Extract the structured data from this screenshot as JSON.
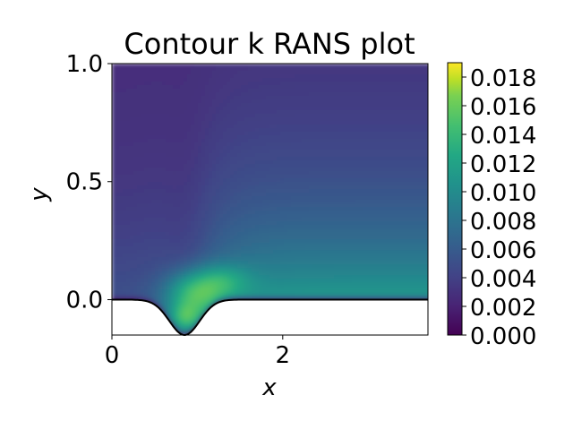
{
  "chart_data": {
    "type": "heatmap",
    "title": "Contour k RANS plot",
    "xlabel": "x",
    "ylabel": "y",
    "xlim": [
      0,
      3.7
    ],
    "ylim": [
      -0.15,
      1.0
    ],
    "x_ticks": [
      {
        "value": 0,
        "label": "0"
      },
      {
        "value": 2,
        "label": "2"
      }
    ],
    "y_ticks": [
      {
        "value": 0.0,
        "label": "0.0"
      },
      {
        "value": 0.5,
        "label": "0.5"
      },
      {
        "value": 1.0,
        "label": "1.0"
      }
    ],
    "colorbar": {
      "colormap": "viridis",
      "range": [
        0,
        0.019
      ],
      "ticks": [
        {
          "value": 0.0,
          "label": "0.000"
        },
        {
          "value": 0.002,
          "label": "0.002"
        },
        {
          "value": 0.004,
          "label": "0.004"
        },
        {
          "value": 0.006,
          "label": "0.006"
        },
        {
          "value": 0.008,
          "label": "0.008"
        },
        {
          "value": 0.01,
          "label": "0.010"
        },
        {
          "value": 0.012,
          "label": "0.012"
        },
        {
          "value": 0.014,
          "label": "0.014"
        },
        {
          "value": 0.016,
          "label": "0.016"
        },
        {
          "value": 0.018,
          "label": "0.018"
        }
      ]
    },
    "lower_wall": {
      "shape": "gaussian dip",
      "center_x": 0.85,
      "depth": 0.15,
      "flat_level": 0.0
    },
    "field_features": {
      "max_value": 0.019,
      "max_location": [
        0.85,
        -0.08
      ],
      "top_value": 0.0025,
      "downstream_near_wall_value": 0.0115
    }
  }
}
